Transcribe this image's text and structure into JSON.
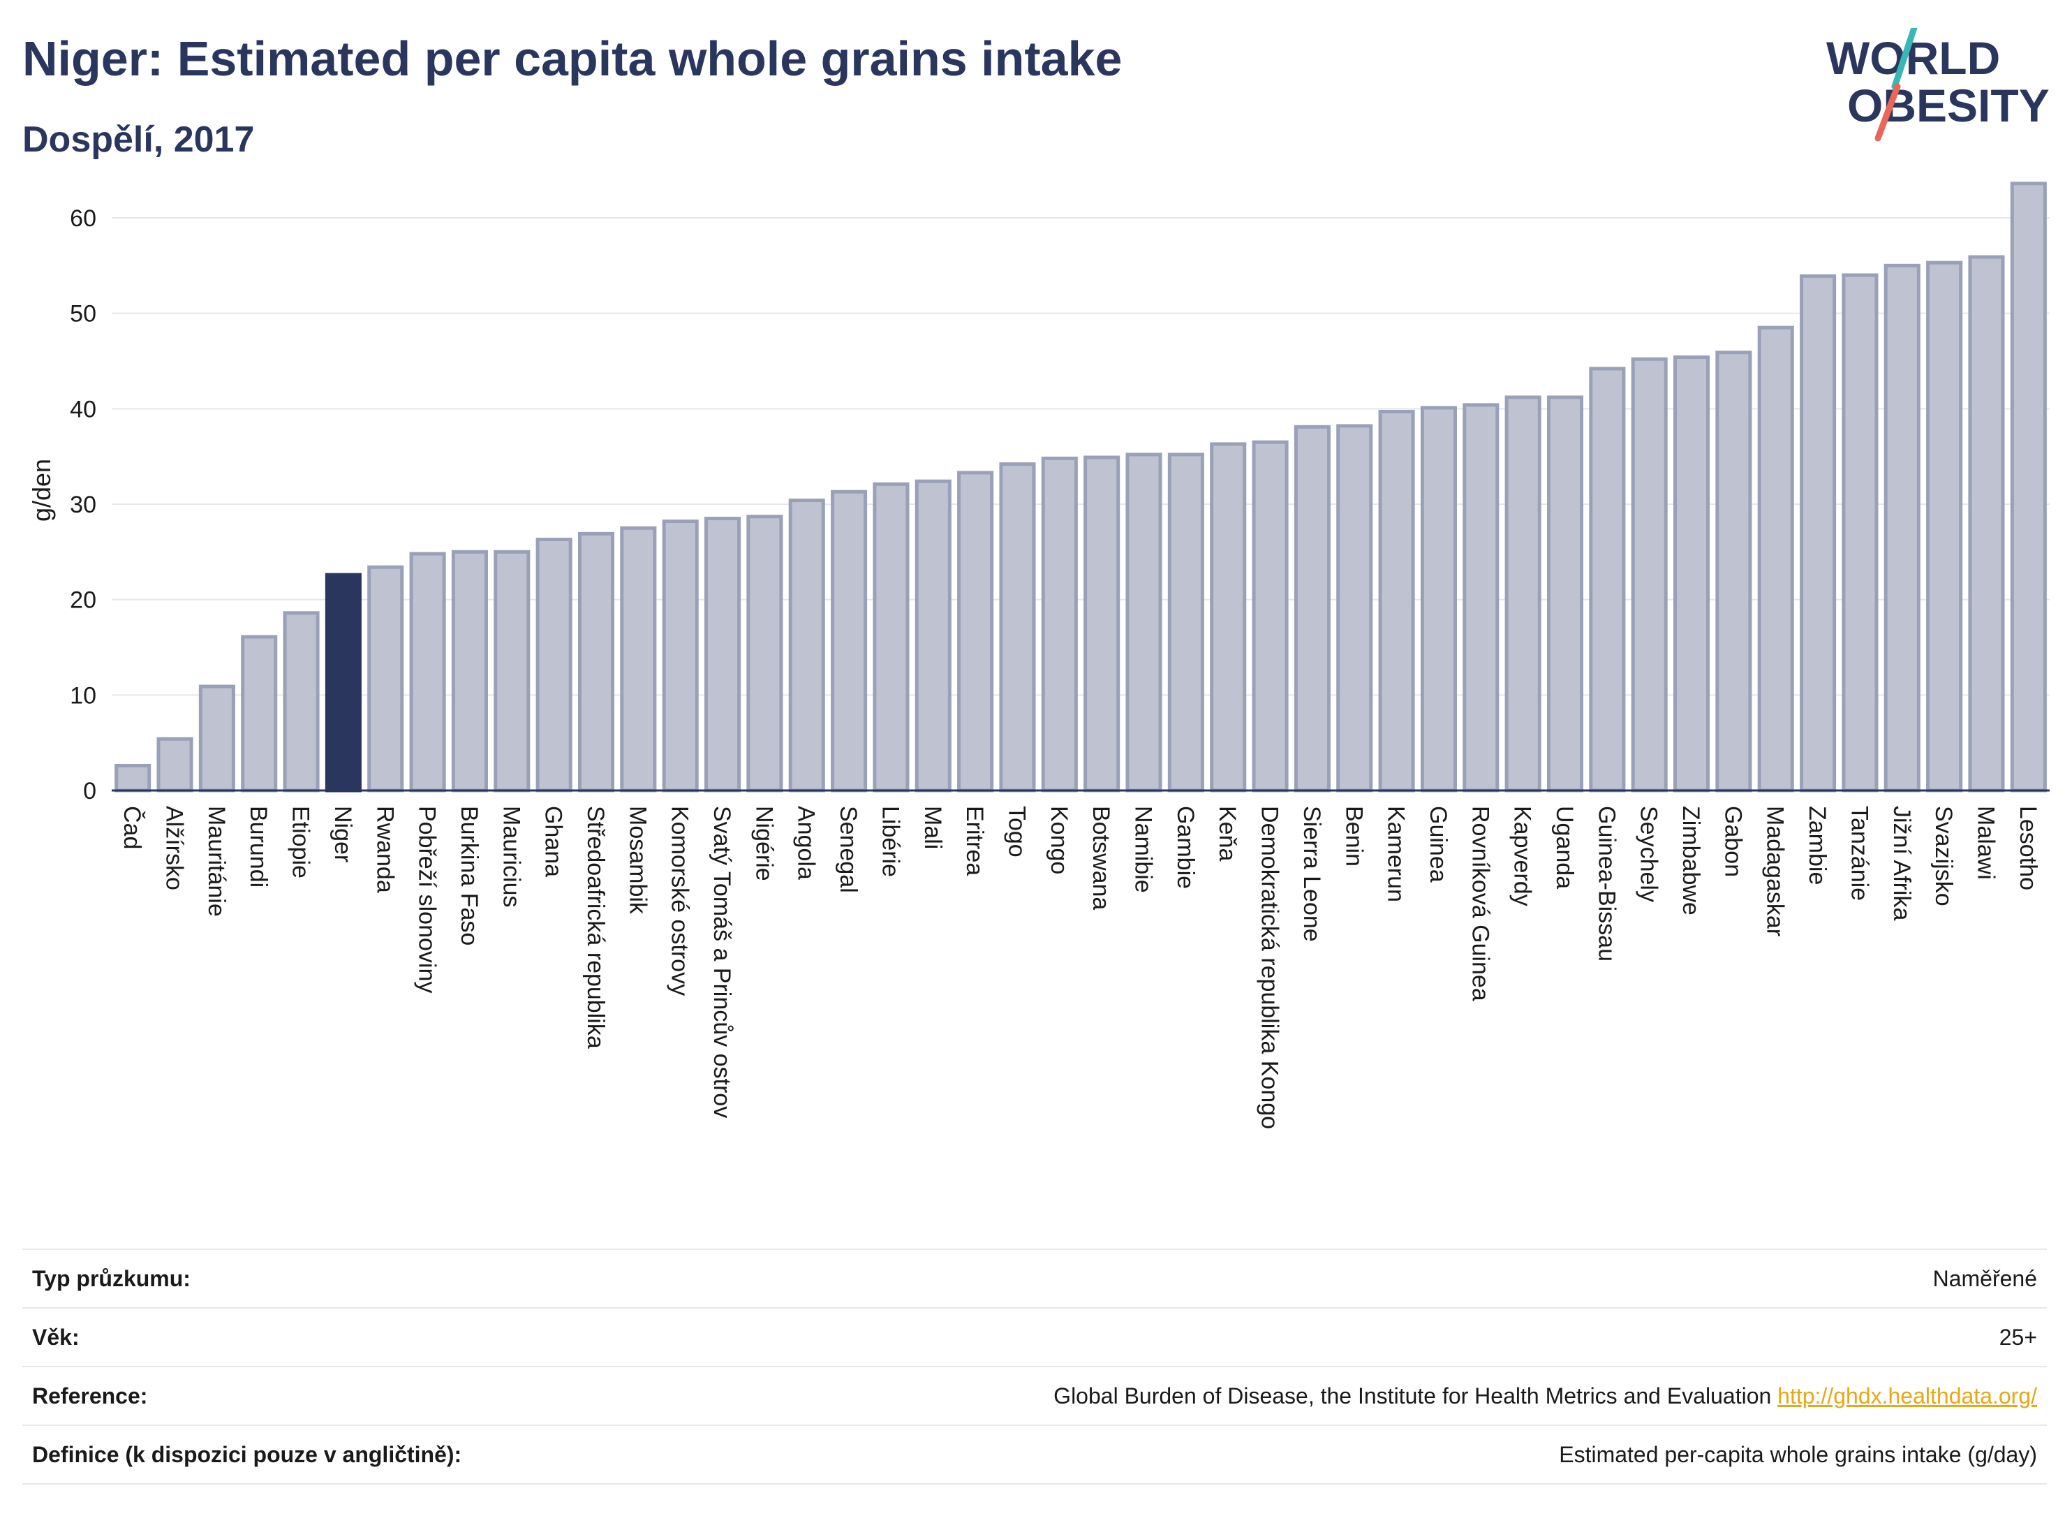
{
  "header": {
    "title": "Niger: Estimated per capita whole grains intake",
    "subtitle": "Dospělí, 2017"
  },
  "logo": {
    "text_line1": "WORLD",
    "text_line2": "OBESITY",
    "colors": {
      "text": "#2b365f",
      "accent_teal": "#39b7b5",
      "accent_red": "#e8665a"
    }
  },
  "colors": {
    "bar_fill": "#bfc3d1",
    "bar_stroke": "#9aa0b6",
    "highlight_fill": "#2b365f",
    "axis_text": "#1a1a1a",
    "grid": "#e6e8ee"
  },
  "chart_data": {
    "type": "bar",
    "title": "Niger: Estimated per capita whole grains intake",
    "subtitle": "Dospělí, 2017",
    "ylabel": "g/den",
    "xlabel": "",
    "ylim": [
      0,
      66
    ],
    "yticks": [
      0,
      10,
      20,
      30,
      40,
      50,
      60
    ],
    "grid": true,
    "highlight": "Niger",
    "categories": [
      "Čad",
      "Alžírsko",
      "Mauritánie",
      "Burundi",
      "Etiopie",
      "Niger",
      "Rwanda",
      "Pobřeží slonoviny",
      "Burkina Faso",
      "Mauricius",
      "Ghana",
      "Středoafrická republika",
      "Mosambik",
      "Komorské ostrovy",
      "Svatý Tomáš a Princův ostrov",
      "Nigérie",
      "Angola",
      "Senegal",
      "Libérie",
      "Mali",
      "Eritrea",
      "Togo",
      "Kongo",
      "Botswana",
      "Namibie",
      "Gambie",
      "Keňa",
      "Demokratická republika Kongo",
      "Sierra Leone",
      "Benin",
      "Kamerun",
      "Guinea",
      "Rovníková Guinea",
      "Kapverdy",
      "Uganda",
      "Guinea-Bissau",
      "Seychely",
      "Zimbabwe",
      "Gabon",
      "Madagaskar",
      "Zambie",
      "Tanzánie",
      "Jižní Afrika",
      "Svazijsko",
      "Malawi",
      "Lesotho"
    ],
    "values": [
      2.6,
      5.4,
      10.9,
      16.1,
      18.6,
      22.6,
      23.4,
      24.8,
      25.0,
      25.0,
      26.3,
      26.9,
      27.5,
      28.2,
      28.5,
      28.7,
      30.4,
      31.3,
      32.1,
      32.4,
      33.3,
      34.2,
      34.8,
      34.9,
      35.2,
      35.2,
      36.3,
      36.5,
      38.1,
      38.2,
      39.7,
      40.1,
      40.4,
      41.2,
      41.2,
      44.2,
      45.2,
      45.4,
      45.9,
      48.5,
      53.9,
      54.0,
      55.0,
      55.3,
      55.9,
      63.6
    ]
  },
  "info_table": [
    {
      "label": "Typ průzkumu:",
      "value": "Naměřené",
      "link": ""
    },
    {
      "label": "Věk:",
      "value": "25+",
      "link": ""
    },
    {
      "label": "Reference:",
      "value": "Global Burden of Disease, the Institute for Health Metrics and Evaluation",
      "link": "http://ghdx.healthdata.org/"
    },
    {
      "label": "Definice (k dispozici pouze v angličtině):",
      "value": "Estimated per-capita whole grains intake (g/day)",
      "link": ""
    }
  ]
}
